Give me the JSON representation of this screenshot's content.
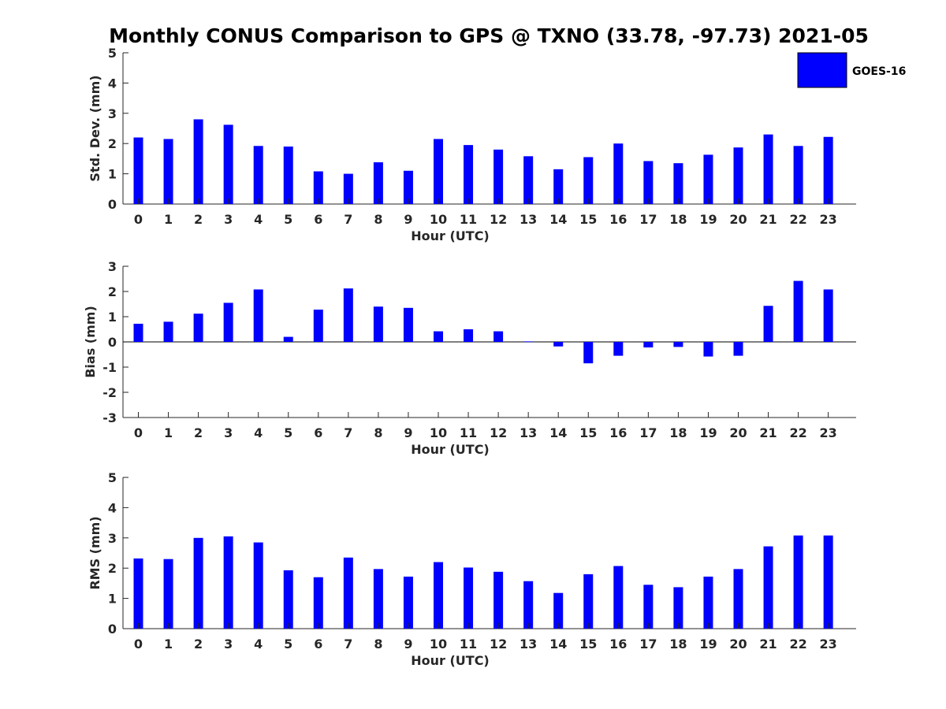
{
  "colors": {
    "bar": "#0000ff",
    "axis": "#262626",
    "background": "#ffffff"
  },
  "legend": {
    "label": "GOES-16",
    "placement": "top-right"
  },
  "chart_data": {
    "title": "Monthly CONUS Comparison to GPS @ TXNO (33.78, -97.73) 2021-05",
    "panels": [
      {
        "name": "std-dev",
        "type": "bar",
        "ylabel": "Std. Dev. (mm)",
        "xlabel": "Hour (UTC)",
        "ylim": [
          0,
          5
        ],
        "yticks": [
          0,
          1,
          2,
          3,
          4,
          5
        ],
        "categories": [
          0,
          1,
          2,
          3,
          4,
          5,
          6,
          7,
          8,
          9,
          10,
          11,
          12,
          13,
          14,
          15,
          16,
          17,
          18,
          19,
          20,
          21,
          22,
          23
        ],
        "series": [
          {
            "name": "GOES-16",
            "values": [
              2.2,
              2.15,
              2.8,
              2.62,
              1.92,
              1.9,
              1.08,
              1.0,
              1.38,
              1.1,
              2.15,
              1.95,
              1.8,
              1.58,
              1.15,
              1.55,
              2.0,
              1.42,
              1.35,
              1.63,
              1.87,
              2.3,
              1.92,
              2.22
            ]
          }
        ]
      },
      {
        "name": "bias",
        "type": "bar",
        "ylabel": "Bias (mm)",
        "xlabel": "Hour (UTC)",
        "ylim": [
          -3,
          3
        ],
        "yticks": [
          -3,
          -2,
          -1,
          0,
          1,
          2,
          3
        ],
        "zero_line": true,
        "categories": [
          0,
          1,
          2,
          3,
          4,
          5,
          6,
          7,
          8,
          9,
          10,
          11,
          12,
          13,
          14,
          15,
          16,
          17,
          18,
          19,
          20,
          21,
          22,
          23
        ],
        "series": [
          {
            "name": "GOES-16",
            "values": [
              0.72,
              0.8,
              1.12,
              1.55,
              2.08,
              0.2,
              1.28,
              2.12,
              1.4,
              1.35,
              0.42,
              0.5,
              0.42,
              0.02,
              -0.18,
              -0.85,
              -0.55,
              -0.22,
              -0.2,
              -0.58,
              -0.55,
              1.43,
              2.42,
              2.08
            ]
          }
        ]
      },
      {
        "name": "rms",
        "type": "bar",
        "ylabel": "RMS (mm)",
        "xlabel": "Hour (UTC)",
        "ylim": [
          0,
          5
        ],
        "yticks": [
          0,
          1,
          2,
          3,
          4,
          5
        ],
        "categories": [
          0,
          1,
          2,
          3,
          4,
          5,
          6,
          7,
          8,
          9,
          10,
          11,
          12,
          13,
          14,
          15,
          16,
          17,
          18,
          19,
          20,
          21,
          22,
          23
        ],
        "series": [
          {
            "name": "GOES-16",
            "values": [
              2.32,
              2.3,
              3.0,
              3.05,
              2.85,
              1.93,
              1.7,
              2.35,
              1.97,
              1.72,
              2.2,
              2.02,
              1.88,
              1.57,
              1.18,
              1.8,
              2.07,
              1.45,
              1.37,
              1.72,
              1.97,
              2.72,
              3.08,
              3.08
            ]
          }
        ]
      }
    ]
  }
}
